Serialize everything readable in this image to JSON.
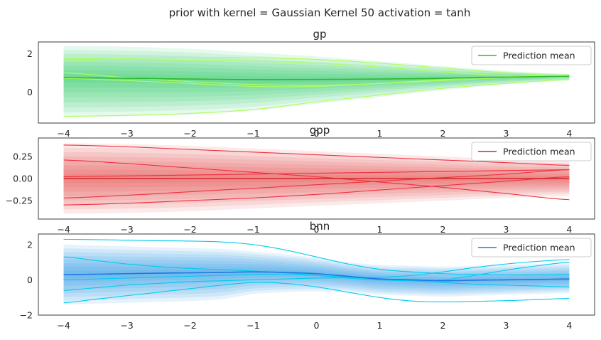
{
  "suptitle": "prior with kernel = Gaussian Kernel 50 activation = tanh",
  "chart_data": [
    {
      "type": "line",
      "title": "gp",
      "xlim": [
        -4.4,
        4.4
      ],
      "ylim": [
        -1.6,
        2.6
      ],
      "xticks": [
        -4,
        -3,
        -2,
        -1,
        0,
        1,
        2,
        3,
        4
      ],
      "yticks": [
        -1,
        0,
        2
      ],
      "ytick_labels": [
        "",
        "0",
        "2"
      ],
      "xtick_labels": [
        "−4",
        "−3",
        "−2",
        "−1",
        "0",
        "1",
        "2",
        "3",
        "4"
      ],
      "band_color": "#1ec75a",
      "mean_color": "#2eb82e",
      "sample_color": "#adff5c",
      "legend": {
        "label": "Prediction mean",
        "loc": "upper right"
      },
      "x": [
        -4,
        -3,
        -2,
        -1,
        0,
        1,
        2,
        3,
        4
      ],
      "mean": [
        0.75,
        0.72,
        0.68,
        0.65,
        0.66,
        0.68,
        0.72,
        0.78,
        0.82
      ],
      "std_upper": [
        2.4,
        2.35,
        2.25,
        2.05,
        1.85,
        1.6,
        1.35,
        1.1,
        0.95
      ],
      "std_lower": [
        -1.3,
        -1.25,
        -1.15,
        -0.95,
        -0.6,
        -0.25,
        0.1,
        0.4,
        0.6
      ],
      "samples": [
        [
          1.6,
          1.75,
          1.8,
          1.78,
          1.7,
          1.5,
          1.25,
          1.0,
          0.85
        ],
        [
          1.0,
          0.75,
          0.55,
          0.4,
          0.35,
          0.45,
          0.6,
          0.75,
          0.85
        ],
        [
          0.72,
          0.6,
          0.45,
          0.3,
          0.3,
          0.45,
          0.65,
          0.8,
          0.9
        ],
        [
          1.75,
          1.7,
          1.65,
          1.6,
          1.5,
          1.3,
          1.05,
          0.85,
          0.75
        ],
        [
          -1.25,
          -1.2,
          -1.1,
          -0.9,
          -0.5,
          -0.15,
          0.2,
          0.45,
          0.65
        ]
      ]
    },
    {
      "type": "line",
      "title": "gpp",
      "xlim": [
        -4.4,
        4.4
      ],
      "ylim": [
        -0.46,
        0.46
      ],
      "xticks": [
        -4,
        -3,
        -2,
        -1,
        0,
        1,
        2,
        3,
        4
      ],
      "yticks": [
        -0.25,
        0.0,
        0.25
      ],
      "ytick_labels": [
        "−0.25",
        "0.00",
        "0.25"
      ],
      "xtick_labels": [
        "−4",
        "−3",
        "−2",
        "−1",
        "0",
        "1",
        "2",
        "3",
        "4"
      ],
      "band_color": "#e8413c",
      "mean_color": "#d62728",
      "sample_color": "#f03040",
      "legend": {
        "label": "Prediction mean",
        "loc": "upper right"
      },
      "x": [
        -4,
        -3,
        -2,
        -1,
        0,
        1,
        2,
        3,
        4
      ],
      "mean": [
        0.0,
        0.0,
        0.0,
        0.0,
        0.0,
        0.0,
        0.0,
        0.0,
        0.0
      ],
      "std_upper": [
        0.4,
        0.39,
        0.37,
        0.34,
        0.31,
        0.28,
        0.25,
        0.22,
        0.2
      ],
      "std_lower": [
        -0.4,
        -0.39,
        -0.37,
        -0.34,
        -0.31,
        -0.28,
        -0.25,
        -0.22,
        -0.2
      ],
      "samples": [
        [
          0.38,
          0.36,
          0.33,
          0.3,
          0.27,
          0.24,
          0.21,
          0.18,
          0.15
        ],
        [
          0.21,
          0.17,
          0.12,
          0.07,
          0.02,
          -0.04,
          -0.1,
          -0.17,
          -0.24
        ],
        [
          -0.22,
          -0.19,
          -0.15,
          -0.11,
          -0.07,
          -0.03,
          0.01,
          0.05,
          0.1
        ],
        [
          -0.3,
          -0.28,
          -0.25,
          -0.22,
          -0.18,
          -0.13,
          -0.08,
          -0.03,
          0.02
        ],
        [
          0.02,
          0.03,
          0.04,
          0.05,
          0.06,
          0.07,
          0.08,
          0.09,
          0.1
        ]
      ]
    },
    {
      "type": "line",
      "title": "bnn",
      "xlim": [
        -4.4,
        4.4
      ],
      "ylim": [
        -2.0,
        2.6
      ],
      "xticks": [
        -4,
        -3,
        -2,
        -1,
        0,
        1,
        2,
        3,
        4
      ],
      "yticks": [
        -2,
        0,
        2
      ],
      "ytick_labels": [
        "−2",
        "0",
        "2"
      ],
      "xtick_labels": [
        "−4",
        "−3",
        "−2",
        "−1",
        "0",
        "1",
        "2",
        "3",
        "4"
      ],
      "band_color": "#1f8ee6",
      "mean_color": "#1f77e4",
      "sample_color": "#00ccee",
      "legend": {
        "label": "Prediction mean",
        "loc": "upper right"
      },
      "x": [
        -4,
        -3.5,
        -3,
        -2.5,
        -2,
        -1.5,
        -1,
        -0.5,
        0,
        0.5,
        1,
        1.5,
        2,
        2.5,
        3,
        3.5,
        4
      ],
      "mean": [
        0.3,
        0.32,
        0.35,
        0.38,
        0.4,
        0.42,
        0.45,
        0.42,
        0.35,
        0.2,
        0.05,
        0.0,
        -0.05,
        -0.02,
        0.0,
        0.02,
        0.05
      ],
      "std_upper": [
        2.0,
        1.95,
        1.9,
        1.85,
        1.8,
        1.75,
        1.6,
        1.45,
        1.25,
        1.0,
        0.85,
        0.8,
        0.75,
        0.8,
        0.85,
        0.9,
        0.95
      ],
      "std_lower": [
        -1.4,
        -1.35,
        -1.3,
        -1.25,
        -1.2,
        -1.1,
        -0.8,
        -0.7,
        -0.65,
        -0.7,
        -0.85,
        -0.9,
        -0.95,
        -0.9,
        -0.85,
        -0.8,
        -0.75
      ],
      "samples": [
        [
          2.3,
          2.28,
          2.25,
          2.22,
          2.2,
          2.15,
          2.0,
          1.7,
          1.3,
          0.9,
          0.6,
          0.45,
          0.35,
          0.3,
          0.28,
          0.28,
          0.3
        ],
        [
          1.3,
          1.1,
          0.9,
          0.75,
          0.65,
          0.58,
          0.5,
          0.4,
          0.25,
          0.1,
          0.0,
          -0.05,
          0.0,
          0.25,
          0.55,
          0.8,
          1.0
        ],
        [
          -0.6,
          -0.45,
          -0.3,
          -0.2,
          -0.1,
          -0.05,
          0.0,
          0.05,
          0.1,
          0.12,
          0.15,
          0.25,
          0.45,
          0.7,
          0.9,
          1.05,
          1.15
        ],
        [
          -1.3,
          -1.1,
          -0.9,
          -0.7,
          -0.5,
          -0.3,
          -0.15,
          -0.2,
          -0.4,
          -0.7,
          -1.0,
          -1.2,
          -1.25,
          -1.22,
          -1.18,
          -1.12,
          -1.05
        ],
        [
          0.0,
          0.05,
          0.1,
          0.15,
          0.2,
          0.25,
          0.3,
          0.3,
          0.25,
          0.15,
          0.05,
          -0.05,
          -0.15,
          -0.25,
          -0.3,
          -0.35,
          -0.4
        ]
      ]
    }
  ]
}
